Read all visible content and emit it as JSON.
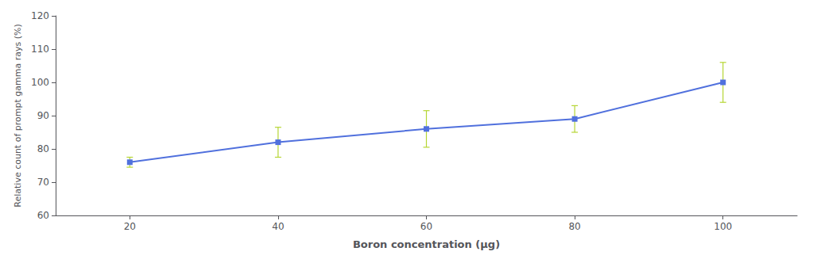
{
  "chart_data": {
    "type": "line",
    "xlabel": "Boron concentration (μg)",
    "ylabel": "Relative count of prompt gamma rays (%)",
    "x": [
      20,
      40,
      60,
      80,
      100
    ],
    "values": [
      76,
      82,
      86,
      89,
      100
    ],
    "yerr": [
      1.5,
      4.5,
      5.5,
      4.0,
      6.0
    ],
    "xlim": [
      10,
      110
    ],
    "ylim": [
      60,
      120
    ],
    "xticks": [
      20,
      40,
      60,
      80,
      100
    ],
    "yticks": [
      60,
      70,
      80,
      90,
      100,
      110,
      120
    ],
    "marker": "square",
    "grid": false
  }
}
